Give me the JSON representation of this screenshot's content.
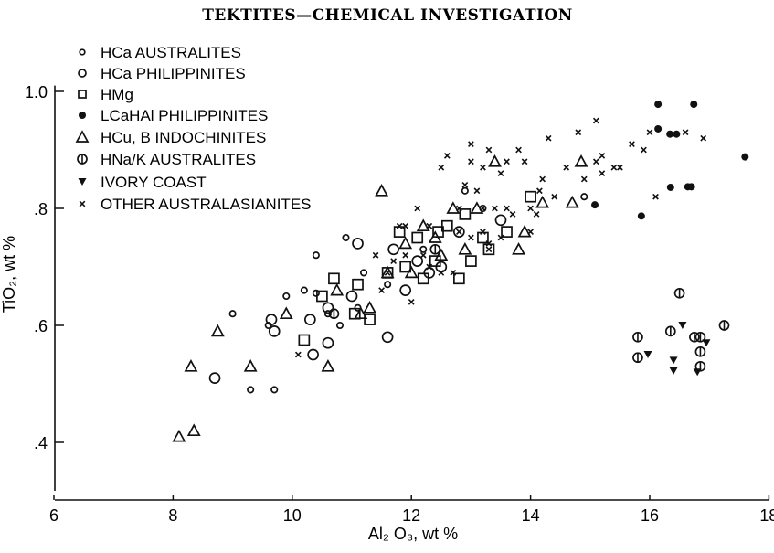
{
  "chart_data": {
    "type": "scatter",
    "title": "TEKTITES—CHEMICAL INVESTIGATION",
    "xlabel": "Al₂ O₃, wt %",
    "ylabel": "TiO₂, wt %",
    "xlim": [
      6,
      18
    ],
    "ylim": [
      0.3,
      1.02
    ],
    "xticks": [
      6,
      8,
      10,
      12,
      14,
      16,
      18
    ],
    "xtick_labels": [
      "6",
      "8",
      "10",
      "12",
      "14",
      "16",
      "18"
    ],
    "yticks": [
      1.0,
      0.8,
      0.6,
      0.4
    ],
    "ytick_labels": [
      "1.0",
      ".8",
      ".6",
      ".4"
    ],
    "grid": false,
    "legend_position": "top-left",
    "series": [
      {
        "name": "HCa AUSTRALITES",
        "marker": "small-circle",
        "points": [
          [
            9.0,
            0.62
          ],
          [
            9.3,
            0.49
          ],
          [
            9.7,
            0.49
          ],
          [
            10.4,
            0.72
          ],
          [
            10.9,
            0.75
          ],
          [
            9.9,
            0.65
          ],
          [
            10.2,
            0.66
          ],
          [
            10.4,
            0.655
          ],
          [
            11.2,
            0.69
          ],
          [
            12.9,
            0.83
          ],
          [
            14.9,
            0.82
          ],
          [
            9.6,
            0.6
          ],
          [
            10.6,
            0.62
          ],
          [
            11.1,
            0.63
          ],
          [
            12.2,
            0.73
          ],
          [
            13.2,
            0.8
          ],
          [
            11.6,
            0.67
          ],
          [
            10.8,
            0.6
          ]
        ]
      },
      {
        "name": "HCa PHILIPPINITES",
        "marker": "circle",
        "points": [
          [
            8.7,
            0.51
          ],
          [
            9.65,
            0.61
          ],
          [
            9.7,
            0.59
          ],
          [
            10.3,
            0.61
          ],
          [
            10.35,
            0.55
          ],
          [
            10.6,
            0.57
          ],
          [
            11.6,
            0.58
          ],
          [
            11.0,
            0.65
          ],
          [
            12.3,
            0.69
          ],
          [
            11.7,
            0.73
          ],
          [
            11.1,
            0.74
          ],
          [
            10.6,
            0.63
          ],
          [
            12.1,
            0.71
          ],
          [
            12.8,
            0.76
          ],
          [
            13.5,
            0.78
          ],
          [
            11.9,
            0.66
          ],
          [
            12.5,
            0.7
          ]
        ]
      },
      {
        "name": "HMg",
        "marker": "square",
        "points": [
          [
            10.2,
            0.575
          ],
          [
            10.5,
            0.65
          ],
          [
            10.7,
            0.68
          ],
          [
            11.1,
            0.67
          ],
          [
            11.05,
            0.62
          ],
          [
            11.3,
            0.61
          ],
          [
            11.6,
            0.69
          ],
          [
            11.8,
            0.76
          ],
          [
            12.1,
            0.75
          ],
          [
            12.4,
            0.71
          ],
          [
            12.6,
            0.77
          ],
          [
            12.8,
            0.68
          ],
          [
            13.0,
            0.71
          ],
          [
            13.2,
            0.75
          ],
          [
            13.6,
            0.76
          ],
          [
            14.0,
            0.82
          ],
          [
            12.9,
            0.79
          ],
          [
            12.2,
            0.68
          ],
          [
            11.9,
            0.7
          ],
          [
            13.3,
            0.73
          ],
          [
            12.45,
            0.76
          ]
        ]
      },
      {
        "name": "LCaHAl PHILIPPINITES",
        "marker": "filled-circle",
        "points": [
          [
            16.14,
            0.978
          ],
          [
            16.74,
            0.978
          ],
          [
            16.14,
            0.936
          ],
          [
            16.34,
            0.927
          ],
          [
            16.45,
            0.927
          ],
          [
            17.6,
            0.888
          ],
          [
            16.35,
            0.836
          ],
          [
            16.64,
            0.837
          ],
          [
            15.86,
            0.787
          ],
          [
            15.08,
            0.806
          ],
          [
            16.7,
            0.837
          ]
        ]
      },
      {
        "name": "HCu, B INDOCHINITES",
        "marker": "triangle",
        "points": [
          [
            8.1,
            0.41
          ],
          [
            8.35,
            0.42
          ],
          [
            8.3,
            0.53
          ],
          [
            8.75,
            0.59
          ],
          [
            9.3,
            0.53
          ],
          [
            9.9,
            0.62
          ],
          [
            10.6,
            0.53
          ],
          [
            11.5,
            0.83
          ],
          [
            10.75,
            0.66
          ],
          [
            11.3,
            0.63
          ],
          [
            11.6,
            0.69
          ],
          [
            12.2,
            0.77
          ],
          [
            12.4,
            0.75
          ],
          [
            13.4,
            0.88
          ],
          [
            14.85,
            0.88
          ],
          [
            14.7,
            0.81
          ],
          [
            14.2,
            0.81
          ],
          [
            13.8,
            0.73
          ],
          [
            13.9,
            0.76
          ],
          [
            12.0,
            0.69
          ],
          [
            12.5,
            0.72
          ],
          [
            11.9,
            0.74
          ],
          [
            13.1,
            0.8
          ],
          [
            12.7,
            0.8
          ],
          [
            11.15,
            0.62
          ],
          [
            12.9,
            0.73
          ]
        ]
      },
      {
        "name": "HNa/K AUSTRALITES",
        "marker": "barred-circle",
        "points": [
          [
            15.8,
            0.58
          ],
          [
            15.8,
            0.545
          ],
          [
            16.5,
            0.655
          ],
          [
            16.35,
            0.59
          ],
          [
            16.75,
            0.58
          ],
          [
            16.85,
            0.58
          ],
          [
            17.25,
            0.6
          ],
          [
            16.85,
            0.555
          ],
          [
            16.85,
            0.53
          ],
          [
            10.7,
            0.62
          ],
          [
            12.4,
            0.73
          ]
        ]
      },
      {
        "name": "IVORY COAST",
        "marker": "filled-triangle-down",
        "points": [
          [
            15.97,
            0.55
          ],
          [
            16.55,
            0.6
          ],
          [
            16.95,
            0.57
          ],
          [
            16.4,
            0.54
          ],
          [
            16.4,
            0.522
          ],
          [
            16.8,
            0.52
          ]
        ]
      },
      {
        "name": "OTHER AUSTRALASIANITES",
        "marker": "x",
        "points": [
          [
            15.1,
            0.95
          ],
          [
            14.3,
            0.92
          ],
          [
            14.8,
            0.93
          ],
          [
            13.0,
            0.91
          ],
          [
            13.3,
            0.9
          ],
          [
            13.8,
            0.9
          ],
          [
            12.6,
            0.89
          ],
          [
            12.5,
            0.87
          ],
          [
            13.0,
            0.88
          ],
          [
            13.2,
            0.87
          ],
          [
            13.5,
            0.86
          ],
          [
            13.6,
            0.88
          ],
          [
            13.9,
            0.88
          ],
          [
            14.6,
            0.87
          ],
          [
            15.5,
            0.87
          ],
          [
            15.2,
            0.86
          ],
          [
            14.9,
            0.85
          ],
          [
            14.2,
            0.85
          ],
          [
            14.15,
            0.83
          ],
          [
            12.1,
            0.8
          ],
          [
            12.8,
            0.8
          ],
          [
            13.2,
            0.8
          ],
          [
            13.4,
            0.8
          ],
          [
            13.6,
            0.8
          ],
          [
            14.1,
            0.79
          ],
          [
            13.7,
            0.79
          ],
          [
            14.0,
            0.8
          ],
          [
            14.4,
            0.82
          ],
          [
            11.8,
            0.77
          ],
          [
            11.9,
            0.77
          ],
          [
            12.3,
            0.77
          ],
          [
            12.8,
            0.76
          ],
          [
            13.2,
            0.76
          ],
          [
            13.0,
            0.75
          ],
          [
            13.3,
            0.74
          ],
          [
            13.5,
            0.75
          ],
          [
            12.3,
            0.7
          ],
          [
            12.5,
            0.69
          ],
          [
            12.7,
            0.69
          ],
          [
            12.2,
            0.72
          ],
          [
            11.9,
            0.72
          ],
          [
            11.4,
            0.72
          ],
          [
            11.7,
            0.71
          ],
          [
            11.5,
            0.66
          ],
          [
            12.0,
            0.64
          ],
          [
            10.1,
            0.55
          ],
          [
            13.3,
            0.73
          ],
          [
            14.0,
            0.76
          ],
          [
            15.9,
            0.9
          ],
          [
            16.0,
            0.93
          ],
          [
            15.7,
            0.91
          ],
          [
            16.6,
            0.93
          ],
          [
            16.1,
            0.82
          ],
          [
            16.9,
            0.92
          ],
          [
            15.4,
            0.87
          ],
          [
            15.2,
            0.89
          ],
          [
            15.1,
            0.88
          ],
          [
            12.9,
            0.84
          ],
          [
            11.6,
            0.69
          ],
          [
            13.1,
            0.83
          ]
        ]
      }
    ]
  }
}
